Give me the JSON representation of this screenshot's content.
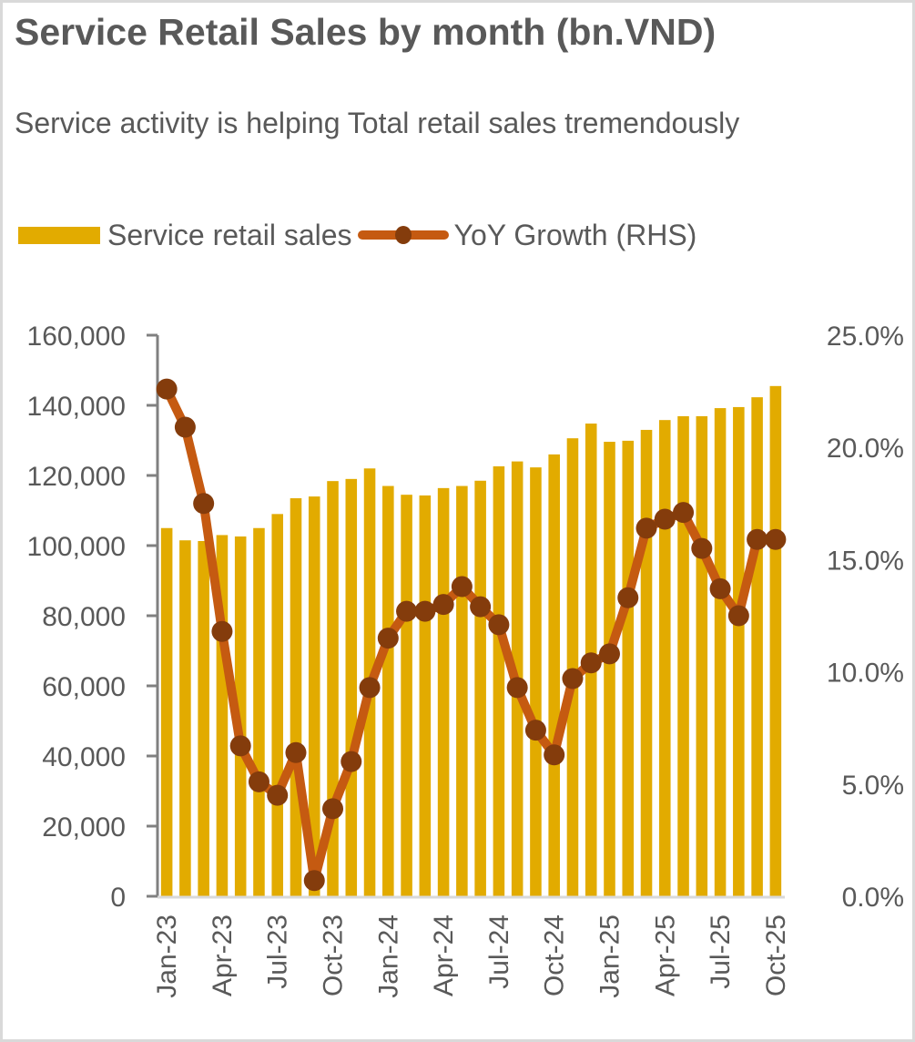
{
  "chart_data": {
    "type": "bar+line",
    "title": "Service Retail Sales by month (bn.VND)",
    "subtitle": "Service activity is helping Total retail sales tremendously",
    "legend_position": "top-left",
    "grid": false,
    "categories": [
      "Jan-23",
      "Feb-23",
      "Mar-23",
      "Apr-23",
      "May-23",
      "Jun-23",
      "Jul-23",
      "Aug-23",
      "Sep-23",
      "Oct-23",
      "Nov-23",
      "Dec-23",
      "Jan-24",
      "Feb-24",
      "Mar-24",
      "Apr-24",
      "May-24",
      "Jun-24",
      "Jul-24",
      "Aug-24",
      "Sep-24",
      "Oct-24",
      "Nov-24",
      "Dec-24",
      "Jan-25",
      "Feb-25",
      "Mar-25",
      "Apr-25",
      "May-25",
      "Jun-25",
      "Jul-25",
      "Aug-25",
      "Sep-25",
      "Oct-25"
    ],
    "x_tick_labels": [
      "Jan-23",
      "Apr-23",
      "Jul-23",
      "Oct-23",
      "Jan-24",
      "Apr-24",
      "Jul-24",
      "Oct-24",
      "Jan-25",
      "Apr-25",
      "Jul-25",
      "Oct-25"
    ],
    "series": [
      {
        "name": "Service retail sales",
        "type": "bar",
        "axis": "left",
        "color": "#e2ab00",
        "values": [
          105000,
          101500,
          101300,
          103000,
          102600,
          105000,
          109000,
          113500,
          114000,
          118400,
          119000,
          122000,
          117000,
          114500,
          114300,
          116400,
          117000,
          118500,
          122600,
          124000,
          122300,
          126000,
          130600,
          134800,
          129600,
          129900,
          133000,
          135800,
          136900,
          136900,
          139200,
          139500,
          142300,
          145500
        ]
      },
      {
        "name": "YoY Growth (RHS)",
        "type": "line",
        "axis": "right",
        "color": "#c55a11",
        "marker_color": "#843c0c",
        "values": [
          22.6,
          20.9,
          17.5,
          11.8,
          6.7,
          5.1,
          4.5,
          6.4,
          0.7,
          3.9,
          6.0,
          9.3,
          11.5,
          12.7,
          12.7,
          13.0,
          13.8,
          12.9,
          12.1,
          9.3,
          7.4,
          6.3,
          9.7,
          10.4,
          10.8,
          13.3,
          16.4,
          16.8,
          17.1,
          15.5,
          13.7,
          12.5,
          15.9,
          15.9
        ]
      }
    ],
    "y_left": {
      "label": "",
      "ylim": [
        0,
        160000
      ],
      "ticks": [
        "0",
        "20,000",
        "40,000",
        "60,000",
        "80,000",
        "100,000",
        "120,000",
        "140,000",
        "160,000"
      ]
    },
    "y_right": {
      "label": "",
      "ylim": [
        0,
        25
      ],
      "ticks": [
        "0.0%",
        "5.0%",
        "10.0%",
        "15.0%",
        "20.0%",
        "25.0%"
      ]
    }
  }
}
